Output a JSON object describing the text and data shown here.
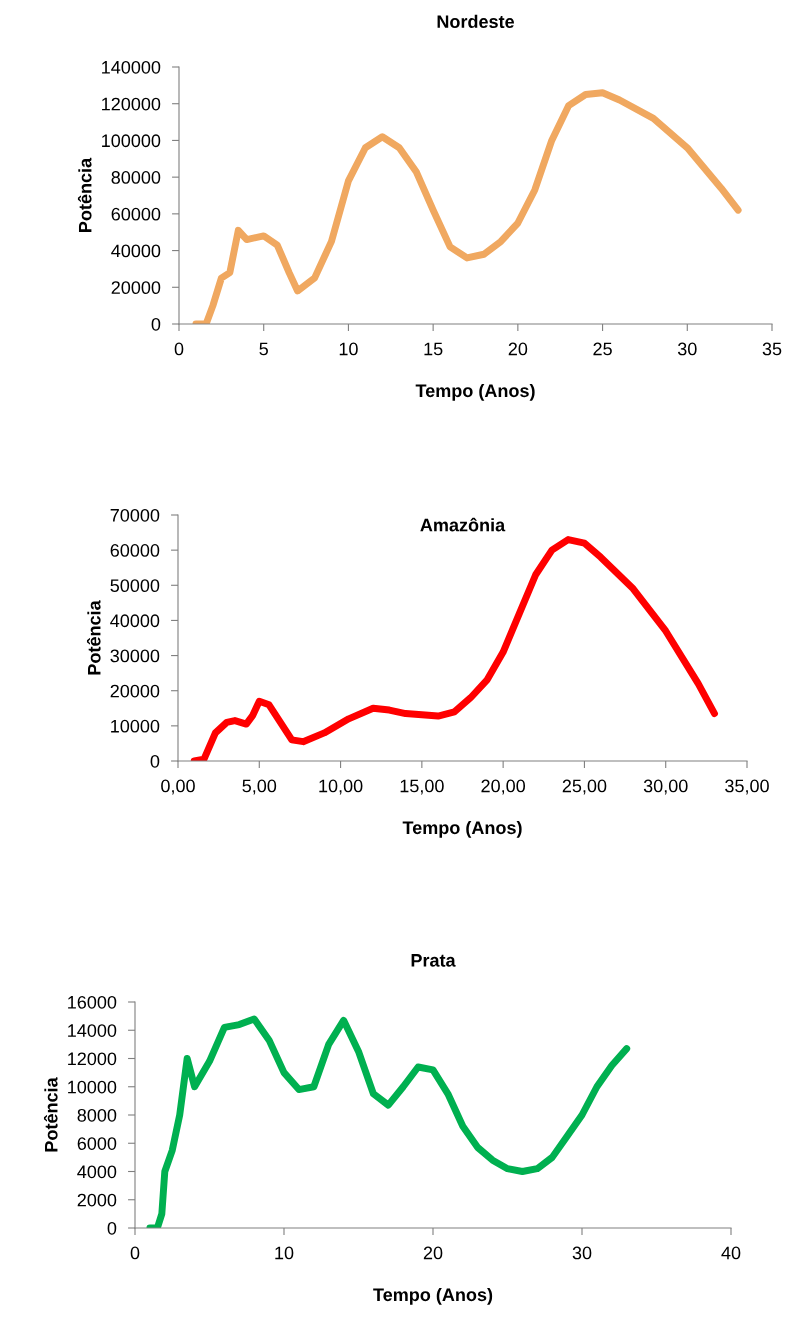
{
  "chart_data": [
    {
      "type": "line",
      "title": "Nordeste",
      "xlabel": "Tempo (Anos)",
      "ylabel": "Potência",
      "xlim": [
        0,
        35
      ],
      "xticks": [
        0,
        5,
        10,
        15,
        20,
        25,
        30,
        35
      ],
      "ylim": [
        0,
        140000
      ],
      "yticks": [
        0,
        20000,
        40000,
        60000,
        80000,
        100000,
        120000,
        140000
      ],
      "grid": false,
      "series": [
        {
          "color": "#f0a860",
          "x": [
            1,
            1.6,
            2,
            2.5,
            3,
            3.5,
            4,
            5,
            5.8,
            6.5,
            7,
            8,
            9,
            10,
            11,
            12,
            13,
            14,
            15,
            16,
            17,
            18,
            19,
            20,
            21,
            22,
            23,
            24,
            25,
            26,
            28,
            30,
            32,
            33
          ],
          "values": [
            0,
            0,
            10000,
            25000,
            28000,
            51000,
            46000,
            48000,
            43000,
            28000,
            18000,
            25000,
            45000,
            78000,
            96000,
            102000,
            96000,
            83000,
            62000,
            42000,
            36000,
            38000,
            45000,
            55000,
            73000,
            100000,
            119000,
            125000,
            126000,
            122000,
            112000,
            96000,
            74000,
            62000
          ]
        }
      ]
    },
    {
      "type": "line",
      "title": "Amazônia",
      "xlabel": "Tempo (Anos)",
      "ylabel": "Potência",
      "xlim": [
        0,
        35
      ],
      "xticks": [
        {
          "value": 0,
          "label": "0,00"
        },
        {
          "value": 5,
          "label": "5,00"
        },
        {
          "value": 10,
          "label": "10,00"
        },
        {
          "value": 15,
          "label": "15,00"
        },
        {
          "value": 20,
          "label": "20,00"
        },
        {
          "value": 25,
          "label": "25,00"
        },
        {
          "value": 30,
          "label": "30,00"
        },
        {
          "value": 35,
          "label": "35,00"
        }
      ],
      "ylim": [
        0,
        70000
      ],
      "yticks": [
        0,
        10000,
        20000,
        30000,
        40000,
        50000,
        60000,
        70000
      ],
      "grid": false,
      "series": [
        {
          "color": "#ff0000",
          "x": [
            1,
            1.6,
            2.3,
            3,
            3.5,
            4.2,
            4.6,
            5,
            5.6,
            6.3,
            7,
            7.7,
            9,
            10.5,
            12,
            13,
            14,
            16,
            17,
            18,
            19,
            20,
            21,
            22,
            23,
            24,
            25,
            26,
            28,
            30,
            32,
            33
          ],
          "values": [
            0,
            500,
            8000,
            11000,
            11500,
            10500,
            13000,
            17000,
            16000,
            11000,
            6000,
            5500,
            8000,
            12000,
            15000,
            14500,
            13500,
            12800,
            14000,
            18000,
            23000,
            31000,
            42000,
            53000,
            60000,
            63000,
            62000,
            58000,
            49000,
            37000,
            22000,
            13500
          ]
        }
      ]
    },
    {
      "type": "line",
      "title": "Prata",
      "xlabel": "Tempo (Anos)",
      "ylabel": "Potência",
      "xlim": [
        0,
        40
      ],
      "xticks": [
        0,
        10,
        20,
        30,
        40
      ],
      "ylim": [
        0,
        16000
      ],
      "yticks": [
        0,
        2000,
        4000,
        6000,
        8000,
        10000,
        12000,
        14000,
        16000
      ],
      "grid": false,
      "series": [
        {
          "color": "#00b050",
          "x": [
            1,
            1.5,
            1.8,
            2,
            2.5,
            3,
            3.5,
            4,
            5,
            6,
            7,
            8,
            9,
            10,
            11,
            12,
            13,
            14,
            15,
            16,
            17,
            18,
            19,
            20,
            21,
            22,
            23,
            24,
            25,
            26,
            27,
            28,
            29,
            30,
            31,
            32,
            33
          ],
          "values": [
            0,
            0,
            1000,
            4000,
            5500,
            8000,
            12000,
            10000,
            11800,
            14200,
            14400,
            14800,
            13300,
            11000,
            9800,
            10000,
            13000,
            14700,
            12500,
            9500,
            8700,
            10000,
            11400,
            11200,
            9500,
            7200,
            5700,
            4800,
            4200,
            4000,
            4200,
            5000,
            6500,
            8000,
            10000,
            11500,
            12700
          ]
        }
      ]
    }
  ]
}
